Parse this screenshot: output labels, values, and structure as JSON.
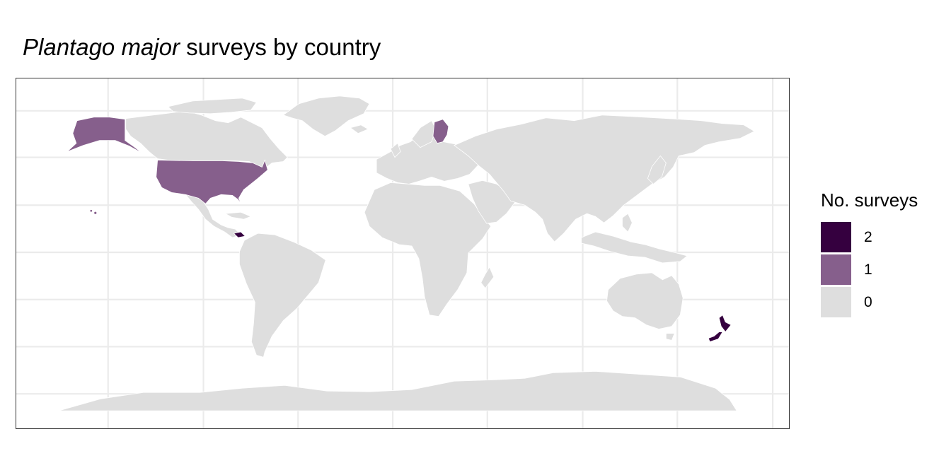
{
  "map_data": {
    "title_species": "Plantago major",
    "title_rest": " surveys by country",
    "legend": {
      "title": "No. surveys",
      "items": [
        {
          "label": "2",
          "color": "#35003f"
        },
        {
          "label": "1",
          "color": "#865f8c"
        },
        {
          "label": "0",
          "color": "#dedede"
        }
      ]
    },
    "country_values": {
      "New Zealand": 2,
      "Costa Rica": 2,
      "United States": 1,
      "Finland": 1
    }
  }
}
